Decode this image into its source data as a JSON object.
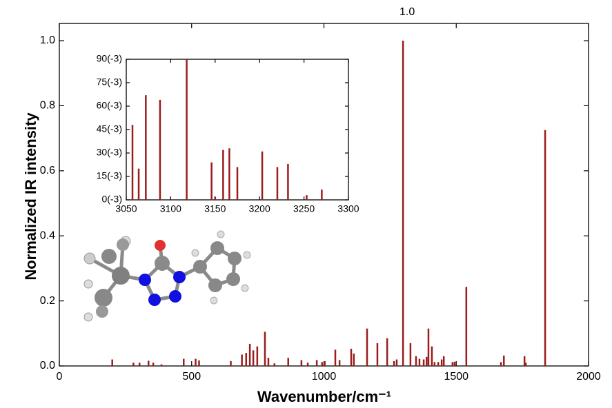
{
  "chart_data": [
    {
      "type": "bar",
      "annotation": "1.0",
      "x_label": "Wavenumber/cm⁻¹",
      "y_label": "Normalized IR intensity",
      "color": "#9b1c1c",
      "x": [
        200,
        280,
        303,
        337,
        355,
        386,
        470,
        515,
        528,
        648,
        690,
        706,
        720,
        733,
        748,
        777,
        790,
        813,
        865,
        915,
        939,
        973,
        993,
        1003,
        1043,
        1059,
        1103,
        1113,
        1163,
        1202,
        1239,
        1265,
        1275,
        1299,
        1327,
        1348,
        1361,
        1377,
        1388,
        1395,
        1408,
        1418,
        1432,
        1445,
        1453,
        1486,
        1494,
        1538,
        1669,
        1680,
        1758,
        1763,
        1836
      ],
      "values": [
        0.02,
        0.01,
        0.01,
        0.016,
        0.01,
        0.005,
        0.022,
        0.022,
        0.017,
        0.015,
        0.035,
        0.04,
        0.068,
        0.048,
        0.06,
        0.105,
        0.025,
        0.008,
        0.025,
        0.018,
        0.01,
        0.018,
        0.012,
        0.015,
        0.05,
        0.018,
        0.053,
        0.038,
        0.115,
        0.07,
        0.085,
        0.015,
        0.02,
        1.0,
        0.07,
        0.03,
        0.022,
        0.02,
        0.028,
        0.115,
        0.06,
        0.012,
        0.012,
        0.02,
        0.03,
        0.012,
        0.013,
        0.243,
        0.012,
        0.032,
        0.03,
        0.01,
        0.725
      ],
      "xlim": [
        0,
        2000
      ],
      "xticks": [
        0,
        500,
        1000,
        1500,
        2000
      ],
      "ylim": [
        0,
        1.053
      ],
      "yticks": [
        {
          "value": 0,
          "label": "0.0"
        },
        0.2,
        0.4,
        0.6,
        0.8,
        {
          "value": 1,
          "label": "1.0"
        }
      ]
    },
    {
      "type": "bar",
      "color": "#9b1c1c",
      "x": [
        3057,
        3064,
        3072,
        3088,
        3118,
        3146,
        3150,
        3159,
        3166,
        3175,
        3203,
        3220,
        3232,
        3253,
        3270
      ],
      "values": [
        0.048,
        0.02,
        0.067,
        0.064,
        0.09,
        0.024,
        0.002,
        0.032,
        0.033,
        0.021,
        0.031,
        0.021,
        0.023,
        0.003,
        0.0066
      ],
      "xlim": [
        3050,
        3300
      ],
      "xticks": [
        3050,
        3100,
        3150,
        3200,
        3250,
        3300
      ],
      "ylim": [
        0,
        0.09
      ],
      "yticks": [
        {
          "value": 0,
          "label": "0(-3)"
        },
        {
          "value": 0.015,
          "label": "15(-3)"
        },
        {
          "value": 0.03,
          "label": "30(-3)"
        },
        {
          "value": 0.045,
          "label": "45(-3)"
        },
        {
          "value": 0.06,
          "label": "60(-3)"
        },
        {
          "value": 0.075,
          "label": "75(-3)"
        },
        {
          "value": 0.09,
          "label": "90(-3)"
        }
      ]
    }
  ]
}
